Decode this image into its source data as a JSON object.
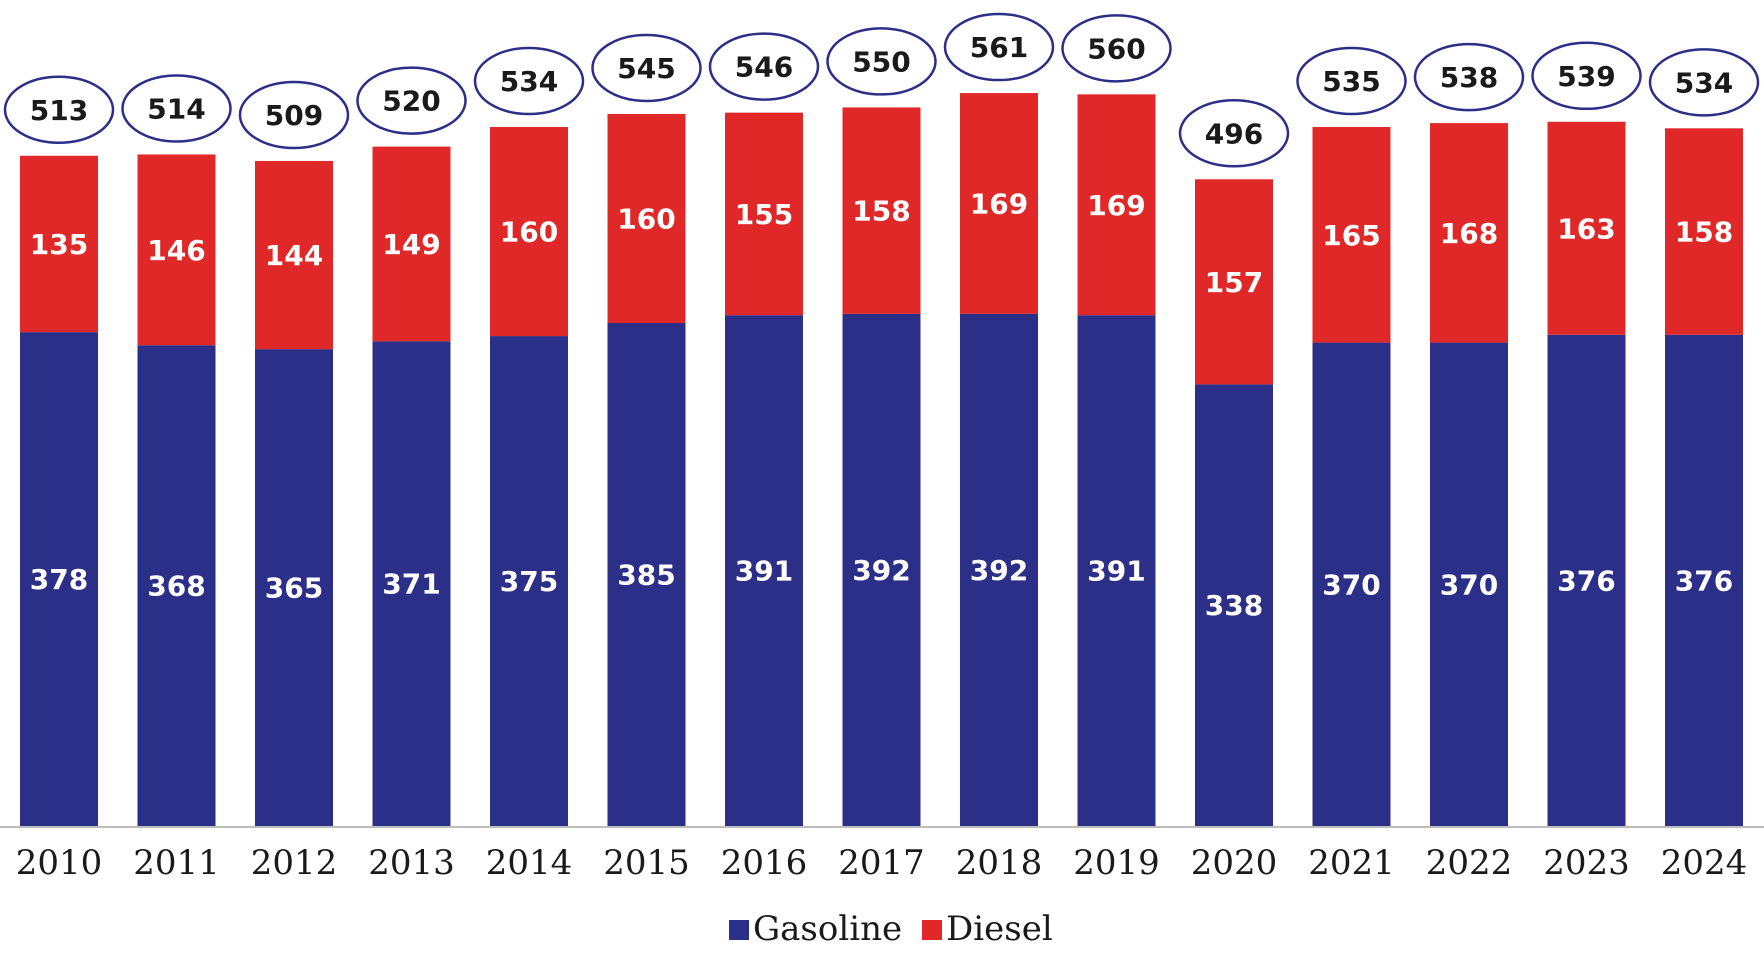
{
  "chart_data": {
    "type": "bar",
    "stacked": true,
    "categories": [
      "2010",
      "2011",
      "2012",
      "2013",
      "2014",
      "2015",
      "2016",
      "2017",
      "2018",
      "2019",
      "2020",
      "2021",
      "2022",
      "2023",
      "2024"
    ],
    "series": [
      {
        "name": "Gasoline",
        "color": "#2b2f87",
        "values": [
          378,
          368,
          365,
          371,
          375,
          385,
          391,
          392,
          392,
          391,
          338,
          370,
          370,
          376,
          376
        ]
      },
      {
        "name": "Diesel",
        "color": "#e02828",
        "values": [
          135,
          146,
          144,
          149,
          160,
          160,
          155,
          158,
          169,
          169,
          157,
          165,
          168,
          163,
          158
        ]
      }
    ],
    "totals": [
      513,
      514,
      509,
      520,
      534,
      545,
      546,
      550,
      561,
      560,
      496,
      535,
      538,
      539,
      534
    ],
    "total_label_style": "ellipse",
    "total_ellipse_color": "#2b2f87",
    "ylim": [
      0,
      600
    ],
    "grid": false,
    "legend_position": "bottom-center",
    "title": "",
    "xlabel": "",
    "ylabel": ""
  }
}
